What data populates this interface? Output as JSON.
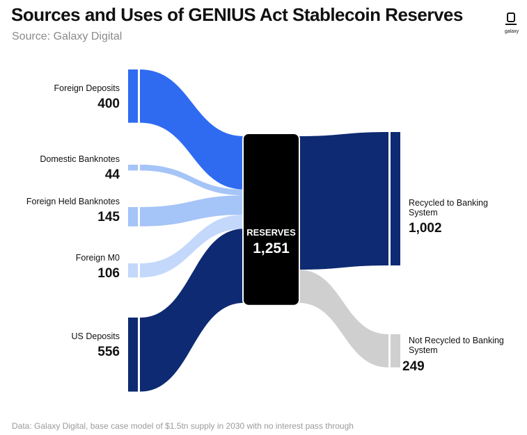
{
  "title": "Sources and Uses of GENIUS Act Stablecoin Reserves",
  "subtitle": "Source: Galaxy Digital",
  "logo_text": "galaxy",
  "footnote": "Data: Galaxy Digital, base case model of $1.5tn supply in 2030 with no interest pass through",
  "chart_data": {
    "type": "sankey",
    "center_node": {
      "label": "RESERVES",
      "value": 1251,
      "value_label": "1,251",
      "color": "#000000"
    },
    "sources": [
      {
        "label": "Foreign Deposits",
        "value": 400,
        "value_label": "400",
        "color": "#2f6bf1"
      },
      {
        "label": "Domestic Banknotes",
        "value": 44,
        "value_label": "44",
        "color": "#a5c4f7"
      },
      {
        "label": "Foreign Held Banknotes",
        "value": 145,
        "value_label": "145",
        "color": "#a5c4f7"
      },
      {
        "label": "Foreign M0",
        "value": 106,
        "value_label": "106",
        "color": "#c3d8fb"
      },
      {
        "label": "US Deposits",
        "value": 556,
        "value_label": "556",
        "color": "#0e2a72"
      }
    ],
    "uses": [
      {
        "label": "Recycled to Banking System",
        "label_lines": [
          "Recycled to Banking",
          "System"
        ],
        "value": 1002,
        "value_label": "1,002",
        "color": "#0e2a72"
      },
      {
        "label": "Not Recycled to Banking System",
        "label_lines": [
          "Not Recycled to Banking",
          "System"
        ],
        "value": 249,
        "value_label": "249",
        "color": "#cfcfcf"
      }
    ]
  }
}
